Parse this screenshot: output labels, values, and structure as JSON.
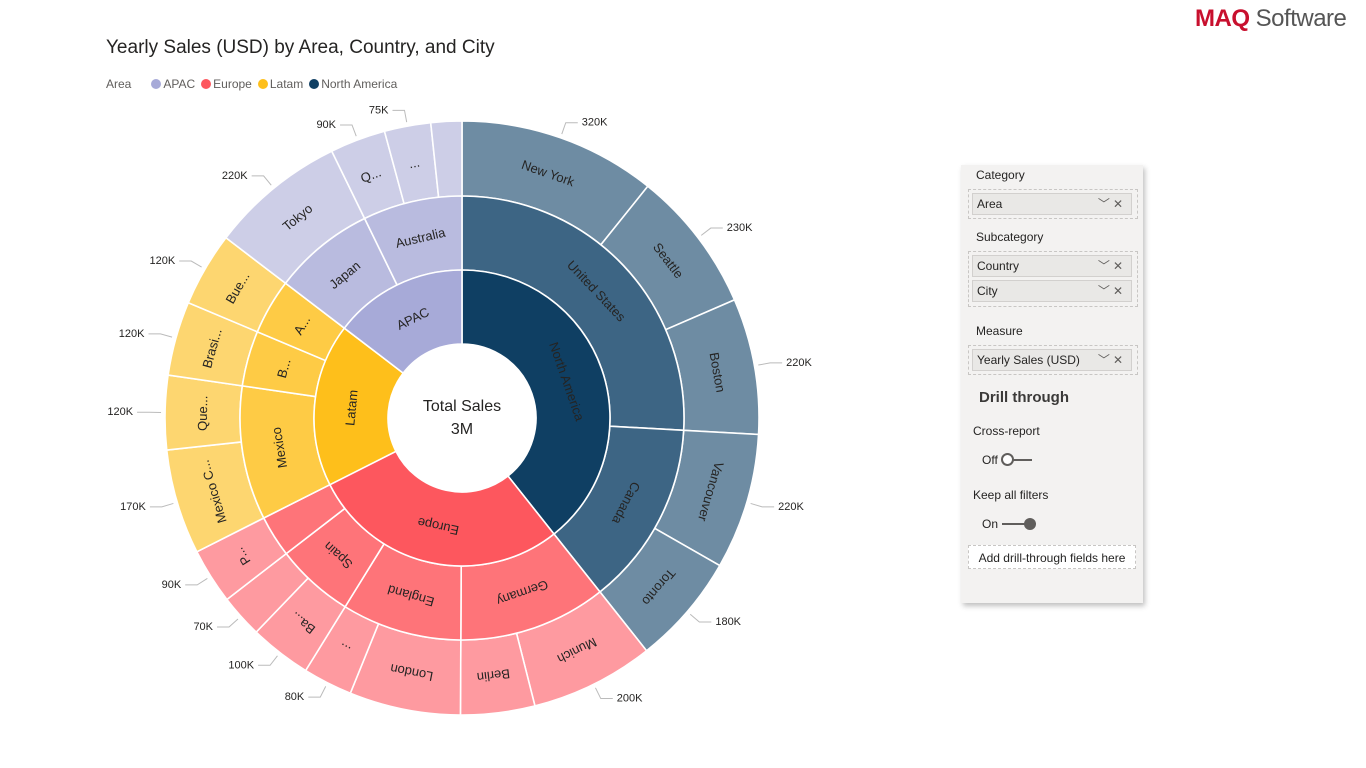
{
  "logo": {
    "brand": "MAQ",
    "suffix": "Software"
  },
  "chart_data": {
    "type": "sunburst",
    "title": "Yearly Sales (USD) by Area, Country, and City",
    "legend_title": "Area",
    "legend_placement": "top-left",
    "center_label": "Total Sales",
    "center_value": "3M",
    "unit": "K USD",
    "areas": [
      {
        "name": "North America",
        "label": "North America",
        "color": "#0f3f63",
        "country_color": "#3d6584",
        "city_color": "#6e8ca3",
        "countries": [
          {
            "label": "United States",
            "cities": [
              {
                "label": "New York",
                "value": 320,
                "value_label": "320K"
              },
              {
                "label": "Seattle",
                "value": 230,
                "value_label": "230K"
              },
              {
                "label": "Boston",
                "value": 220,
                "value_label": "220K"
              }
            ]
          },
          {
            "label": "Canada",
            "cities": [
              {
                "label": "Vancouver",
                "value": 220,
                "value_label": "220K"
              },
              {
                "label": "Toronto",
                "value": 180,
                "value_label": "180K"
              }
            ]
          }
        ]
      },
      {
        "name": "Europe",
        "label": "Europe",
        "color": "#fd575e",
        "country_color": "#fe7479",
        "city_color": "#fe9aa0",
        "countries": [
          {
            "label": "Germany",
            "cities": [
              {
                "label": "Munich",
                "value": 200,
                "value_label": "200K"
              },
              {
                "label": "Berlin",
                "value": 120,
                "value_label": null
              }
            ]
          },
          {
            "label": "England",
            "cities": [
              {
                "label": "London",
                "value": 180,
                "value_label": null
              },
              {
                "label": "...",
                "value": 80,
                "value_label": "80K"
              }
            ]
          },
          {
            "label": "Spain",
            "cities": [
              {
                "label": "Ba...",
                "value": 100,
                "value_label": "100K"
              },
              {
                "label": "",
                "value": 70,
                "value_label": "70K"
              }
            ]
          },
          {
            "label": "",
            "cities": [
              {
                "label": "P...",
                "value": 90,
                "value_label": "90K"
              }
            ]
          }
        ]
      },
      {
        "name": "Latam",
        "label": "Latam",
        "color": "#febf1b",
        "country_color": "#fecb45",
        "city_color": "#fdd670",
        "countries": [
          {
            "label": "Mexico",
            "cities": [
              {
                "label": "Mexico C...",
                "value": 170,
                "value_label": "170K"
              },
              {
                "label": "Que...",
                "value": 120,
                "value_label": "120K"
              }
            ]
          },
          {
            "label": "B...",
            "cities": [
              {
                "label": "Brasi...",
                "value": 120,
                "value_label": "120K"
              }
            ]
          },
          {
            "label": "A...",
            "cities": [
              {
                "label": "Bue...",
                "value": 120,
                "value_label": "120K"
              }
            ]
          }
        ]
      },
      {
        "name": "APAC",
        "label": "APAC",
        "color": "#a7aad8",
        "country_color": "#b9bbdf",
        "city_color": "#cdcee7",
        "countries": [
          {
            "label": "Japan",
            "cities": [
              {
                "label": "Tokyo",
                "value": 220,
                "value_label": "220K"
              }
            ]
          },
          {
            "label": "Australia",
            "cities": [
              {
                "label": "Q...",
                "value": 90,
                "value_label": "90K"
              },
              {
                "label": "...",
                "value": 75,
                "value_label": "75K"
              },
              {
                "label": "",
                "value": 50,
                "value_label": null
              }
            ]
          }
        ]
      }
    ],
    "legend_order": [
      "APAC",
      "Europe",
      "Latam",
      "North America"
    ]
  },
  "panel": {
    "category_label": "Category",
    "category_fields": [
      "Area"
    ],
    "subcategory_label": "Subcategory",
    "subcategory_fields": [
      "Country",
      "City"
    ],
    "measure_label": "Measure",
    "measure_fields": [
      "Yearly Sales (USD)"
    ],
    "drill_title": "Drill through",
    "cross_report_label": "Cross-report",
    "cross_report_state": "Off",
    "keep_filters_label": "Keep all filters",
    "keep_filters_state": "On",
    "add_fields_label": "Add drill-through fields here",
    "chevron_icon": "chevron-down-icon",
    "remove_icon": "close-icon"
  }
}
